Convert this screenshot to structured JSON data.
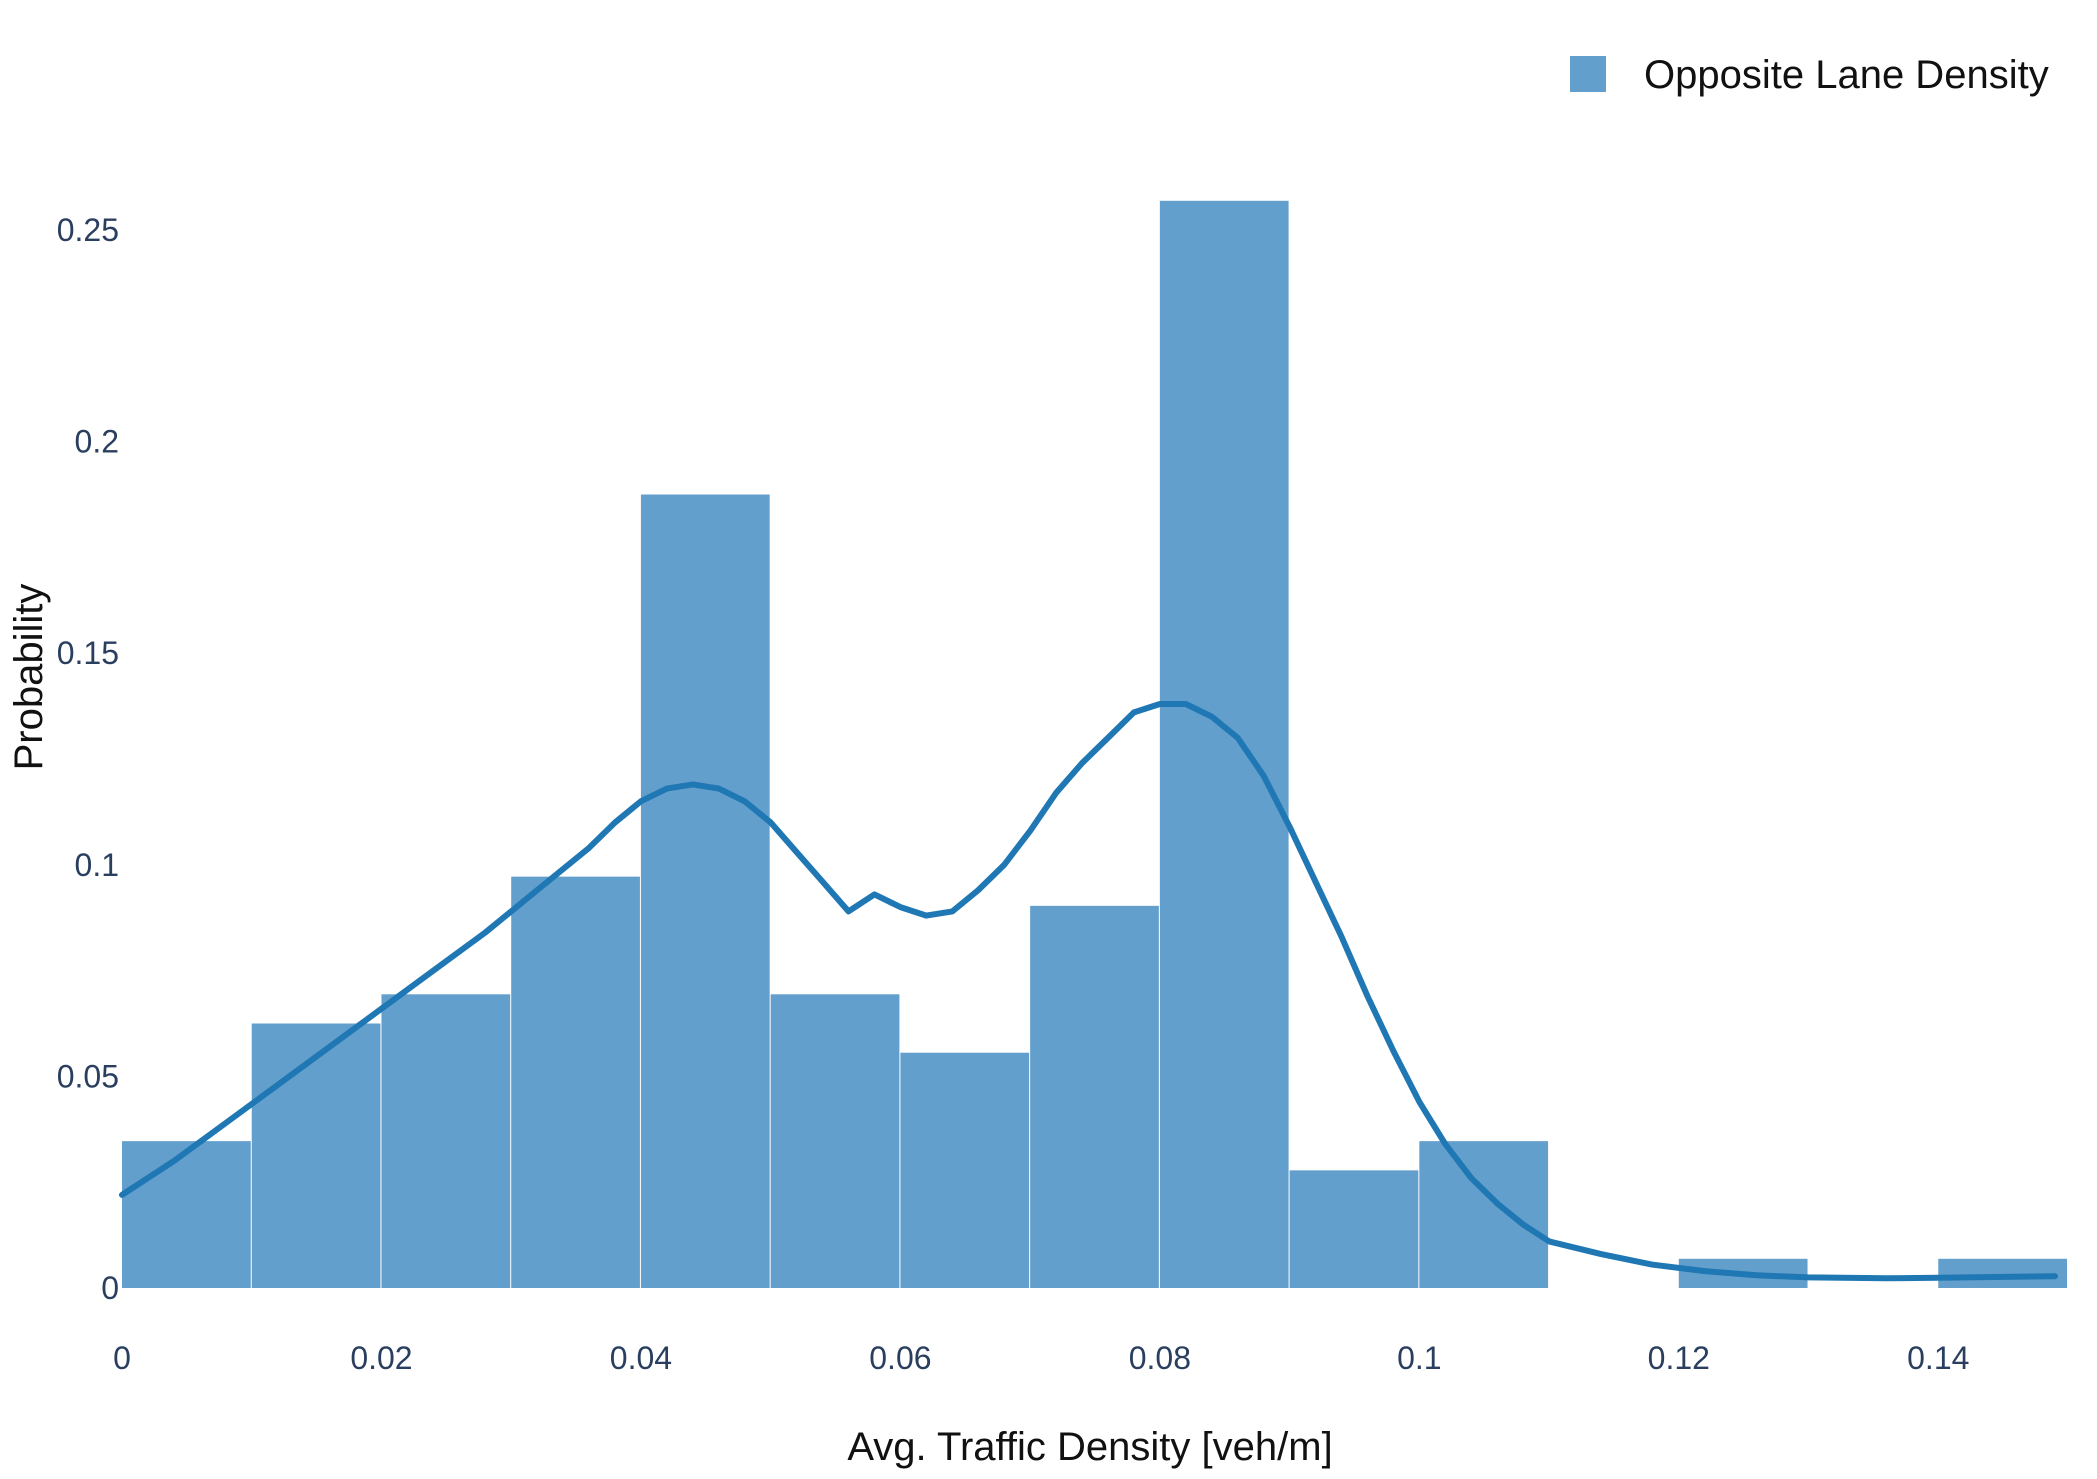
{
  "chart_data": {
    "type": "bar",
    "subtype": "histogram-with-density-curve",
    "title": "",
    "xlabel": "Avg. Traffic Density [veh/m]",
    "ylabel": "Probability",
    "xlim": [
      0,
      0.15
    ],
    "ylim": [
      0,
      0.265
    ],
    "grid": false,
    "legend_position": "top-right",
    "x_ticks": [
      {
        "value": 0,
        "label": "0"
      },
      {
        "value": 0.02,
        "label": "0.02"
      },
      {
        "value": 0.04,
        "label": "0.04"
      },
      {
        "value": 0.06,
        "label": "0.06"
      },
      {
        "value": 0.08,
        "label": "0.08"
      },
      {
        "value": 0.1,
        "label": "0.1"
      },
      {
        "value": 0.12,
        "label": "0.12"
      },
      {
        "value": 0.14,
        "label": "0.14"
      }
    ],
    "y_ticks": [
      {
        "value": 0,
        "label": "0"
      },
      {
        "value": 0.05,
        "label": "0.05"
      },
      {
        "value": 0.1,
        "label": "0.1"
      },
      {
        "value": 0.15,
        "label": "0.15"
      },
      {
        "value": 0.2,
        "label": "0.2"
      },
      {
        "value": 0.25,
        "label": "0.25"
      }
    ],
    "series": [
      {
        "name": "Opposite Lane Density",
        "color": "#639fcc",
        "bins": [
          {
            "x0": 0.0,
            "x1": 0.01,
            "value": 0.0347
          },
          {
            "x0": 0.01,
            "x1": 0.02,
            "value": 0.0625
          },
          {
            "x0": 0.02,
            "x1": 0.03,
            "value": 0.0694
          },
          {
            "x0": 0.03,
            "x1": 0.04,
            "value": 0.0972
          },
          {
            "x0": 0.04,
            "x1": 0.05,
            "value": 0.1875
          },
          {
            "x0": 0.05,
            "x1": 0.06,
            "value": 0.0694
          },
          {
            "x0": 0.06,
            "x1": 0.07,
            "value": 0.0556
          },
          {
            "x0": 0.07,
            "x1": 0.08,
            "value": 0.0903
          },
          {
            "x0": 0.08,
            "x1": 0.09,
            "value": 0.2569
          },
          {
            "x0": 0.09,
            "x1": 0.1,
            "value": 0.0278
          },
          {
            "x0": 0.1,
            "x1": 0.11,
            "value": 0.0347
          },
          {
            "x0": 0.11,
            "x1": 0.12,
            "value": 0
          },
          {
            "x0": 0.12,
            "x1": 0.13,
            "value": 0.0069
          },
          {
            "x0": 0.13,
            "x1": 0.14,
            "value": 0
          },
          {
            "x0": 0.14,
            "x1": 0.15,
            "value": 0.0069
          }
        ]
      },
      {
        "color": "#1f77b4",
        "type": "line",
        "x": [
          0,
          0.004,
          0.008,
          0.012,
          0.016,
          0.02,
          0.024,
          0.028,
          0.032,
          0.036,
          0.038,
          0.04,
          0.042,
          0.044,
          0.046,
          0.048,
          0.05,
          0.052,
          0.054,
          0.056,
          0.058,
          0.06,
          0.062,
          0.064,
          0.066,
          0.068,
          0.07,
          0.072,
          0.074,
          0.076,
          0.078,
          0.08,
          0.082,
          0.084,
          0.086,
          0.088,
          0.09,
          0.092,
          0.094,
          0.096,
          0.098,
          0.1,
          0.102,
          0.104,
          0.106,
          0.108,
          0.11,
          0.114,
          0.118,
          0.122,
          0.126,
          0.13,
          0.136,
          0.14,
          0.149
        ],
        "y": [
          0.022,
          0.03,
          0.039,
          0.048,
          0.057,
          0.066,
          0.075,
          0.084,
          0.094,
          0.104,
          0.11,
          0.115,
          0.118,
          0.119,
          0.118,
          0.115,
          0.11,
          0.103,
          0.096,
          0.089,
          0.093,
          0.09,
          0.088,
          0.089,
          0.094,
          0.1,
          0.108,
          0.117,
          0.124,
          0.13,
          0.136,
          0.138,
          0.138,
          0.135,
          0.13,
          0.121,
          0.109,
          0.096,
          0.083,
          0.069,
          0.056,
          0.044,
          0.034,
          0.026,
          0.02,
          0.015,
          0.011,
          0.008,
          0.0055,
          0.004,
          0.003,
          0.0025,
          0.0023,
          0.0024,
          0.0028
        ]
      }
    ]
  }
}
